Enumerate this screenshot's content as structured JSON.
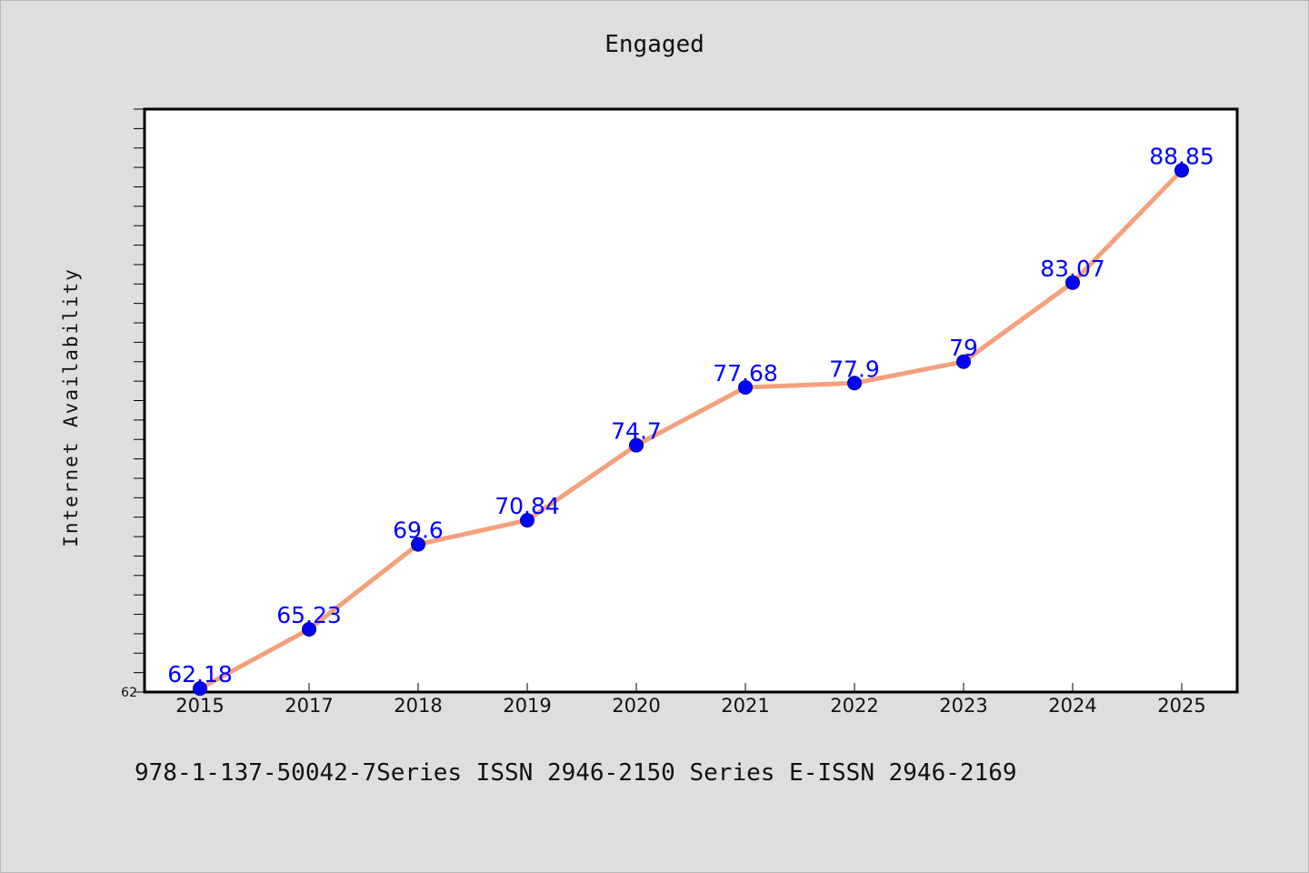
{
  "chart_data": {
    "type": "line",
    "title": "Engaged",
    "xlabel": "",
    "ylabel": "Internet Availability",
    "categories": [
      "2015",
      "2017",
      "2018",
      "2019",
      "2020",
      "2021",
      "2022",
      "2023",
      "2024",
      "2025"
    ],
    "values": [
      62.18,
      65.23,
      69.6,
      70.84,
      74.7,
      77.68,
      77.9,
      79,
      83.07,
      88.85
    ],
    "data_labels": [
      "62.18",
      "65.23",
      "69.6",
      "70.84",
      "74.7",
      "77.68",
      "77.9",
      "79",
      "83.07",
      "88.85"
    ],
    "ytick_labels": [
      "62"
    ],
    "ylim": [
      62,
      92
    ],
    "grid": false,
    "legend": "none",
    "colors": {
      "line": "#f4a07c",
      "marker": "#0000ff",
      "marker_edge": "#00008b",
      "data_label": "#0000ff",
      "plot_background": "#ffffff",
      "figure_background": "#dedede"
    }
  },
  "footer": {
    "text": "978-1-137-50042-7Series ISSN 2946-2150 Series E-ISSN 2946-2169"
  }
}
